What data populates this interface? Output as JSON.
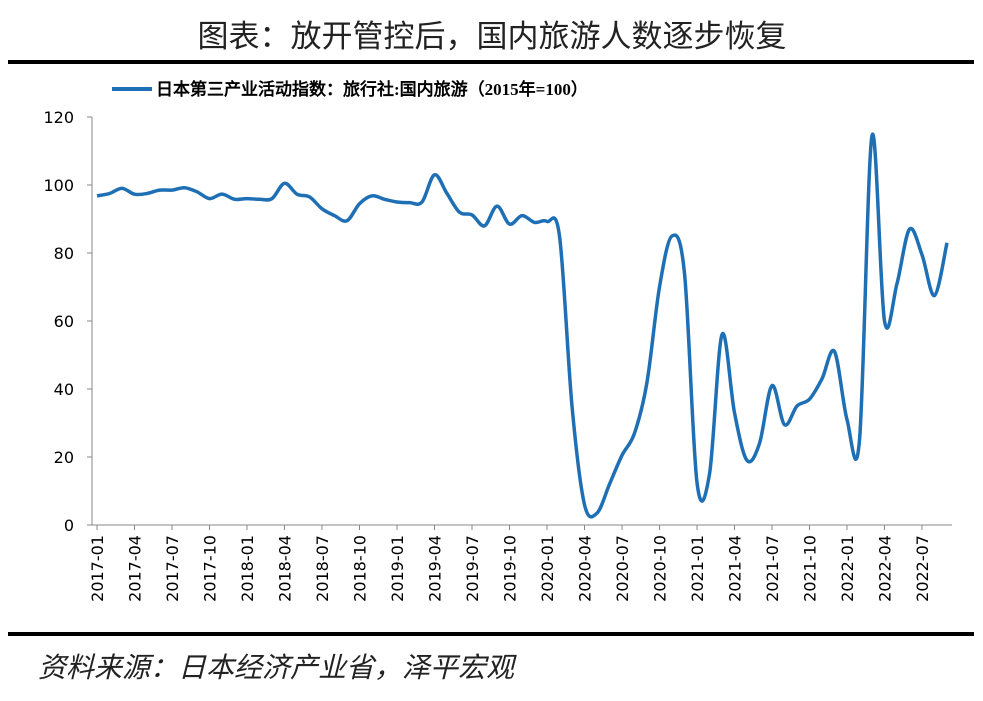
{
  "header": {
    "title": "图表：放开管控后，国内旅游人数逐步恢复"
  },
  "chart_data": {
    "type": "line",
    "categories": [
      "2017-01",
      null,
      null,
      "2017-04",
      null,
      null,
      "2017-07",
      null,
      null,
      "2017-10",
      null,
      null,
      "2018-01",
      null,
      null,
      "2018-04",
      null,
      null,
      "2018-07",
      null,
      null,
      "2018-10",
      null,
      null,
      "2019-01",
      null,
      null,
      "2019-04",
      null,
      null,
      "2019-07",
      null,
      null,
      "2019-10",
      null,
      null,
      "2020-01",
      null,
      null,
      "2020-04",
      null,
      null,
      "2020-07",
      null,
      null,
      "2020-10",
      null,
      null,
      "2021-01",
      null,
      null,
      "2021-04",
      null,
      null,
      "2021-07",
      null,
      null,
      "2021-10",
      null,
      null,
      "2022-01",
      null,
      null,
      "2022-04",
      null,
      null,
      "2022-07",
      null,
      null
    ],
    "series": [
      {
        "name": "日本第三产业活动指数：旅行社:国内旅游（2015年=100）",
        "color": "#1f6fb5",
        "values": [
          96.8,
          97.5,
          99,
          97.3,
          97.5,
          98.5,
          98.5,
          99.2,
          98,
          96,
          97.3,
          95.8,
          96,
          95.8,
          96,
          100.5,
          97.3,
          96.5,
          93,
          91,
          89.5,
          94.5,
          96.8,
          95.8,
          95,
          94.8,
          95,
          103,
          97.5,
          92,
          91.2,
          88,
          93.8,
          88.5,
          91,
          89,
          89.3,
          85,
          35,
          6,
          3.5,
          12,
          20.5,
          27,
          42,
          70,
          85,
          74,
          12.5,
          15,
          56,
          33,
          19,
          24,
          41,
          29.5,
          35,
          37,
          43,
          51,
          31,
          25,
          114.5,
          60,
          71,
          87,
          79.5,
          67.5,
          83
        ]
      }
    ],
    "ylim": [
      0,
      120
    ],
    "yticks": [
      0,
      20,
      40,
      60,
      80,
      100,
      120
    ],
    "grid": false,
    "legend": "top"
  },
  "footer": {
    "source": "资料来源：日本经济产业省，泽平宏观"
  }
}
